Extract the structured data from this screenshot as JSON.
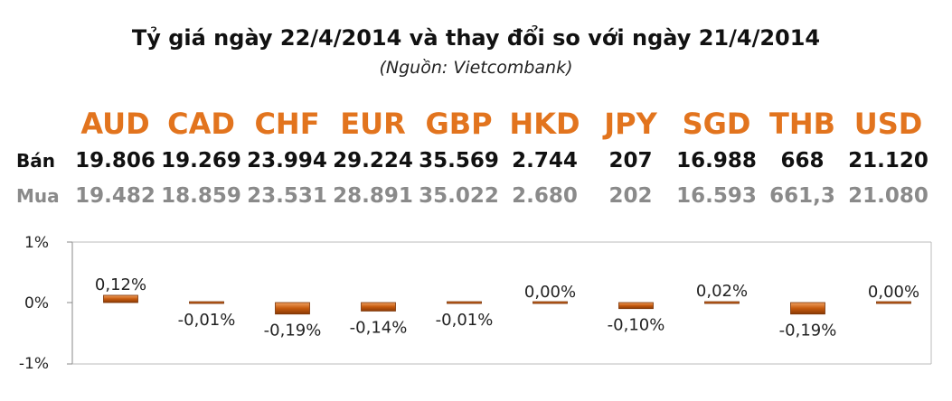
{
  "chart_data": {
    "type": "bar",
    "title": "Tỷ giá ngày 22/4/2014 và thay đổi so với ngày 21/4/2014",
    "subtitle": "(Nguồn: Vietcombank)",
    "categories": [
      "AUD",
      "CAD",
      "CHF",
      "EUR",
      "GBP",
      "HKD",
      "JPY",
      "SGD",
      "THB",
      "USD"
    ],
    "rows": {
      "sell_label": "Bán",
      "sell": [
        "19.806",
        "19.269",
        "23.994",
        "29.224",
        "35.569",
        "2.744",
        "207",
        "16.988",
        "668",
        "21.120"
      ],
      "buy_label": "Mua",
      "buy": [
        "19.482",
        "18.859",
        "23.531",
        "28.891",
        "35.022",
        "2.680",
        "202",
        "16.593",
        "661,3",
        "21.080"
      ]
    },
    "series": [
      {
        "values": [
          0.12,
          -0.01,
          -0.19,
          -0.14,
          -0.01,
          0.0,
          -0.1,
          0.02,
          -0.19,
          0.0
        ],
        "labels": [
          "0,12%",
          "-0,01%",
          "-0,19%",
          "-0,14%",
          "-0,01%",
          "0,00%",
          "-0,10%",
          "0,02%",
          "-0,19%",
          "0,00%"
        ]
      }
    ],
    "ylim": [
      -1,
      1
    ],
    "yticks": [
      "1%",
      "0%",
      "-1%"
    ],
    "grid": false,
    "colors": {
      "currency_text": "#e2741e",
      "bar": "#c65a0e",
      "bar_light": "#f0a060",
      "sell_text": "#111111",
      "buy_text": "#8a8a8a"
    }
  }
}
